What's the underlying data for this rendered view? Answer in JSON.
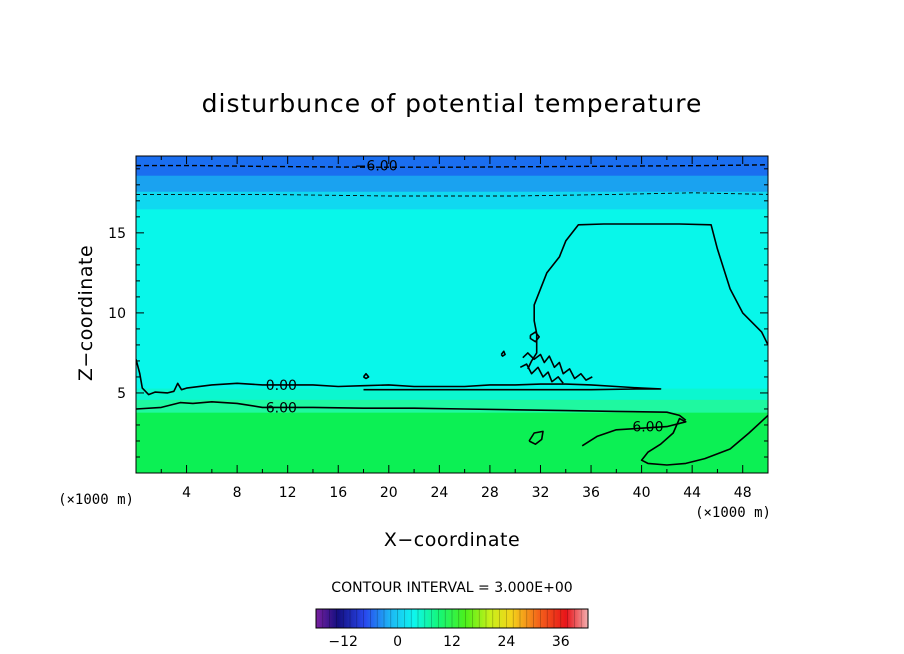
{
  "chart_data": {
    "type": "contour",
    "title": "disturbunce of potential temperature",
    "xlabel": "X−coordinate",
    "ylabel": "Z−coordinate",
    "x_unit": "(×1000 m)",
    "y_unit": "(×1000 m)",
    "xlim": [
      0,
      50
    ],
    "ylim": [
      0,
      19.8
    ],
    "x_ticks": [
      4,
      8,
      12,
      16,
      20,
      24,
      28,
      32,
      36,
      40,
      44,
      48
    ],
    "y_ticks": [
      5,
      10,
      15
    ],
    "contour_interval_text": "CONTOUR INTERVAL = 3.000E+00",
    "contour_labels": [
      {
        "text": "−6.00",
        "x": 19,
        "z": 19.2
      },
      {
        "text": "0.00",
        "x": 11.5,
        "z": 5.5
      },
      {
        "text": "6.00",
        "x": 11.5,
        "z": 4.1
      },
      {
        "text": "6.00",
        "x": 40.5,
        "z": 2.9
      }
    ],
    "colorbar": {
      "range": [
        -18,
        42
      ],
      "tick_values": [
        -12,
        0,
        12,
        24,
        36
      ],
      "tick_labels": [
        "−12",
        "0",
        "12",
        "24",
        "36"
      ]
    },
    "fill_bands": [
      {
        "z0": 0,
        "z1": 3.8,
        "color": "#0cf054"
      },
      {
        "z0": 3.8,
        "z1": 4.6,
        "color": "#1ff8a0"
      },
      {
        "z0": 4.6,
        "z1": 5.3,
        "color": "#0cf7cf"
      },
      {
        "z0": 5.3,
        "z1": 16.5,
        "color": "#08f7ea"
      },
      {
        "z0": 16.5,
        "z1": 17.6,
        "color": "#10d8f0"
      },
      {
        "z0": 17.6,
        "z1": 18.6,
        "color": "#1aa2f0"
      },
      {
        "z0": 18.6,
        "z1": 19.8,
        "color": "#1a6ef0"
      }
    ],
    "contours": [
      {
        "style": "dashed",
        "points": [
          [
            0,
            19.2
          ],
          [
            5,
            19.2
          ],
          [
            10,
            19.15
          ],
          [
            18,
            19.1
          ],
          [
            25,
            19.1
          ],
          [
            35,
            19.15
          ],
          [
            45,
            19.2
          ],
          [
            50,
            19.25
          ]
        ]
      },
      {
        "style": "dashed_thin",
        "points": [
          [
            0,
            17.4
          ],
          [
            10,
            17.4
          ],
          [
            20,
            17.3
          ],
          [
            30,
            17.3
          ],
          [
            38,
            17.4
          ],
          [
            44,
            17.5
          ],
          [
            50,
            17.4
          ]
        ]
      },
      {
        "style": "solid",
        "points": [
          [
            0,
            7.1
          ],
          [
            0.3,
            6.2
          ],
          [
            0.5,
            5.3
          ],
          [
            1,
            4.9
          ],
          [
            1.5,
            5.05
          ],
          [
            2.5,
            5.0
          ],
          [
            3,
            5.1
          ],
          [
            3.3,
            5.6
          ],
          [
            3.6,
            5.2
          ],
          [
            4,
            5.3
          ],
          [
            6,
            5.5
          ],
          [
            8,
            5.6
          ],
          [
            10,
            5.5
          ],
          [
            12,
            5.5
          ],
          [
            14,
            5.5
          ],
          [
            16,
            5.4
          ],
          [
            18,
            5.45
          ],
          [
            20,
            5.5
          ],
          [
            22,
            5.4
          ],
          [
            24,
            5.4
          ],
          [
            26,
            5.4
          ],
          [
            28,
            5.5
          ],
          [
            30,
            5.5
          ],
          [
            32,
            5.55
          ],
          [
            34,
            5.55
          ],
          [
            36,
            5.5
          ],
          [
            38,
            5.4
          ],
          [
            40,
            5.3
          ],
          [
            41.5,
            5.25
          ],
          [
            40,
            5.25
          ],
          [
            36,
            5.2
          ],
          [
            32,
            5.2
          ],
          [
            28,
            5.2
          ],
          [
            25,
            5.2
          ],
          [
            22,
            5.2
          ],
          [
            20,
            5.2
          ],
          [
            18,
            5.2
          ]
        ]
      },
      {
        "style": "solid",
        "points": [
          [
            0,
            4.0
          ],
          [
            2,
            4.1
          ],
          [
            3.5,
            4.4
          ],
          [
            4.5,
            4.35
          ],
          [
            6,
            4.45
          ],
          [
            8,
            4.35
          ],
          [
            10,
            4.1
          ],
          [
            14,
            4.1
          ],
          [
            18,
            4.05
          ],
          [
            22,
            4.05
          ],
          [
            26,
            4.0
          ],
          [
            30,
            3.95
          ],
          [
            34,
            3.9
          ],
          [
            38,
            3.85
          ],
          [
            42,
            3.8
          ],
          [
            43,
            3.6
          ],
          [
            43.5,
            3.3
          ]
        ]
      },
      {
        "style": "solid",
        "points": [
          [
            35.3,
            1.7
          ],
          [
            36.5,
            2.3
          ],
          [
            38,
            2.7
          ],
          [
            40,
            2.8
          ],
          [
            42,
            2.9
          ],
          [
            43.5,
            3.2
          ],
          [
            43,
            3.4
          ],
          [
            42.5,
            2.5
          ],
          [
            41.5,
            1.8
          ],
          [
            40.5,
            1.3
          ],
          [
            40,
            0.8
          ],
          [
            40.5,
            0.6
          ],
          [
            42,
            0.5
          ],
          [
            43.5,
            0.6
          ],
          [
            45,
            0.9
          ],
          [
            47,
            1.5
          ],
          [
            48.5,
            2.5
          ],
          [
            50,
            3.6
          ]
        ]
      },
      {
        "style": "solid",
        "points": [
          [
            50,
            8.0
          ],
          [
            49.5,
            8.8
          ],
          [
            48,
            10.0
          ],
          [
            47,
            11.5
          ],
          [
            46,
            14
          ],
          [
            45.5,
            15.5
          ],
          [
            43,
            15.55
          ],
          [
            40,
            15.55
          ],
          [
            37,
            15.55
          ],
          [
            35,
            15.5
          ],
          [
            34,
            14.5
          ],
          [
            33.5,
            13.5
          ],
          [
            32.5,
            12.5
          ],
          [
            32,
            11.5
          ],
          [
            31.5,
            10.5
          ],
          [
            31.5,
            9.5
          ],
          [
            31.7,
            8.7
          ],
          [
            31.7,
            7.5
          ],
          [
            31.3,
            7.0
          ],
          [
            31.0,
            6.5
          ]
        ]
      },
      {
        "style": "solid",
        "points": [
          [
            31.2,
            8.6
          ],
          [
            31.6,
            8.8
          ],
          [
            31.9,
            8.5
          ],
          [
            31.6,
            8.2
          ],
          [
            31.2,
            8.4
          ],
          [
            31.2,
            8.6
          ]
        ]
      },
      {
        "style": "solid",
        "points": [
          [
            30.6,
            7.2
          ],
          [
            31,
            7.5
          ],
          [
            31.5,
            7.1
          ],
          [
            32,
            7.4
          ],
          [
            32.3,
            6.9
          ],
          [
            32.7,
            7.3
          ],
          [
            33.1,
            6.6
          ],
          [
            33.5,
            6.9
          ],
          [
            33.8,
            6.2
          ],
          [
            34.3,
            6.5
          ],
          [
            34.7,
            5.9
          ],
          [
            35.2,
            6.2
          ],
          [
            35.6,
            5.8
          ],
          [
            36.1,
            6.0
          ]
        ]
      },
      {
        "style": "solid",
        "points": [
          [
            30.4,
            6.6
          ],
          [
            30.9,
            6.8
          ],
          [
            31.3,
            6.2
          ],
          [
            31.8,
            6.6
          ],
          [
            32.2,
            6.0
          ],
          [
            32.6,
            6.3
          ],
          [
            32.9,
            5.7
          ],
          [
            33.4,
            6.0
          ],
          [
            33.8,
            5.6
          ]
        ]
      },
      {
        "style": "solid",
        "points": [
          [
            31.1,
            2.0
          ],
          [
            31.5,
            2.5
          ],
          [
            32.2,
            2.6
          ],
          [
            32.1,
            2.1
          ],
          [
            31.6,
            1.8
          ],
          [
            31.1,
            2.0
          ]
        ]
      },
      {
        "style": "solid",
        "points": [
          [
            28.9,
            7.4
          ],
          [
            29.1,
            7.6
          ],
          [
            29.2,
            7.4
          ],
          [
            29.0,
            7.3
          ],
          [
            28.9,
            7.4
          ]
        ]
      },
      {
        "style": "solid",
        "points": [
          [
            18.0,
            6.0
          ],
          [
            18.2,
            6.2
          ],
          [
            18.4,
            6.0
          ],
          [
            18.2,
            5.9
          ],
          [
            18.0,
            6.0
          ]
        ]
      }
    ]
  }
}
